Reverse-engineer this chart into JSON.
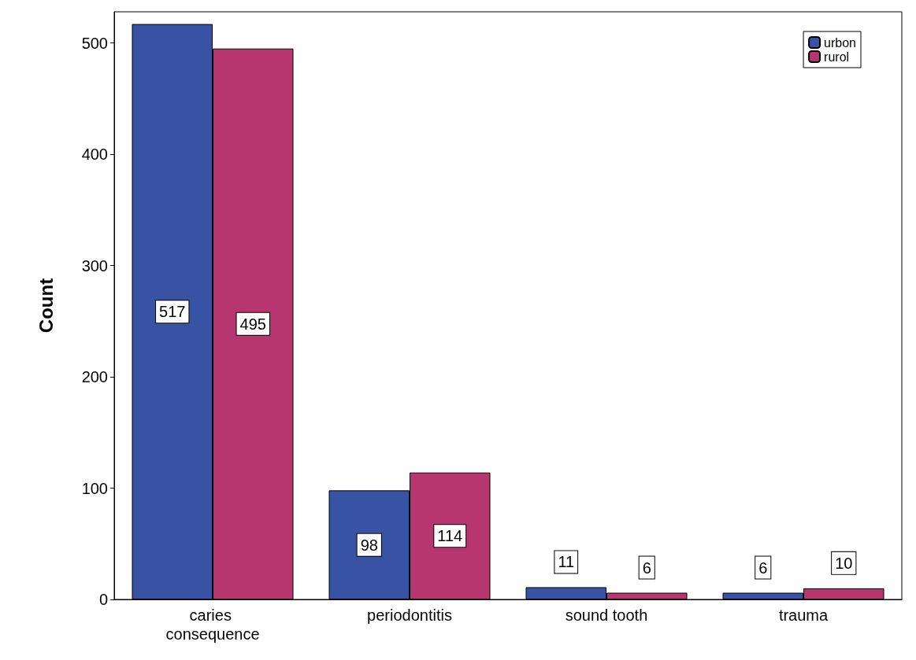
{
  "chart_data": {
    "type": "bar",
    "ylabel": "Count",
    "categories": [
      "caries consequence",
      "periodontitis",
      "sound tooth",
      "trauma"
    ],
    "series": [
      {
        "name": "urbon",
        "color": "#3953a4",
        "values": [
          517,
          98,
          11,
          6
        ]
      },
      {
        "name": "rurol",
        "color": "#b8366f",
        "values": [
          495,
          114,
          6,
          10
        ]
      }
    ],
    "ylim": [
      0,
      528
    ],
    "yticks": [
      0,
      100,
      200,
      300,
      400,
      500
    ],
    "grid": false,
    "legend": "top right",
    "data_labels": true
  }
}
